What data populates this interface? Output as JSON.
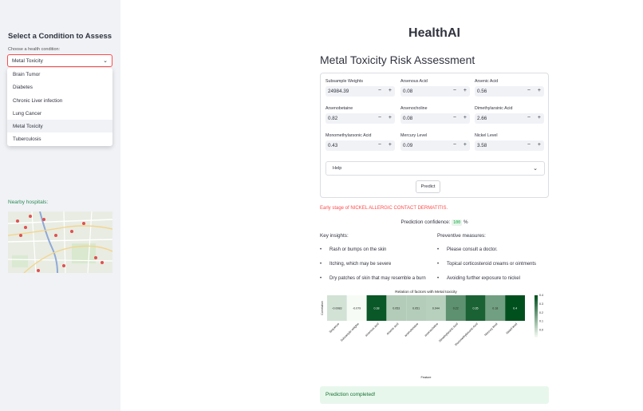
{
  "sidebar": {
    "title": "Select a Condition to Assess",
    "select_label": "Choose a health condition:",
    "selected": "Metal Toxicity",
    "options": [
      "Brain Tumor",
      "Diabetes",
      "Chronic Liver infection",
      "Lung Cancer",
      "Metal Toxicity",
      "Tuberculosis"
    ],
    "nearby_label": "Nearby hospitals:"
  },
  "main": {
    "app_title": "HealthAI",
    "subheader": "Metal Toxicity Risk Assessment",
    "fields": [
      {
        "label": "Subsample Weights",
        "value": "24984.39"
      },
      {
        "label": "Arsenous Acid",
        "value": "0.08"
      },
      {
        "label": "Arsenic Acid",
        "value": "0.56"
      },
      {
        "label": "Arsenobetaine",
        "value": "0.82"
      },
      {
        "label": "Arsenocholine",
        "value": "0.08"
      },
      {
        "label": "Dimethylarsinic Acid",
        "value": "2.66"
      },
      {
        "label": "Monomethylarsonic Acid",
        "value": "0.43"
      },
      {
        "label": "Mercury Level",
        "value": "0.09"
      },
      {
        "label": "Nickel Level",
        "value": "3.58"
      }
    ],
    "stepper_minus": "−",
    "stepper_plus": "+",
    "help_label": "Help",
    "predict_label": "Predict",
    "result_text": "Early stage of NICKEL ALLERGIC CONTACT DERMATITIS.",
    "confidence_label": "Prediction confidence:",
    "confidence_value": "100",
    "confidence_unit": "%",
    "insights_title": "Key insights:",
    "insights": [
      "Rash or bumps on the skin",
      "Itching, which may be severe",
      "Dry patches of skin that may resemble a burn"
    ],
    "preventive_title": "Preventive measures:",
    "preventive": [
      "Please consult a doctor.",
      "Topical corticosteroid creams or ointments",
      "Avoiding further exposure to nickel"
    ],
    "success_text": "Prediction completed!"
  },
  "chart_data": {
    "type": "heatmap",
    "title": "Relation of factors with Metal toxicity",
    "xlabel": "Feature",
    "ylabel": "Correlation",
    "categories": [
      "Sequence",
      "Subsample weights",
      "arsenous acid",
      "Arsenic acid",
      "arsenobetaine",
      "arsenocholine",
      "Dimethylarsinic Acid",
      "Monomethylarsonic Acid",
      "Mercury level",
      "Nickel level"
    ],
    "values": [
      -0.0083,
      -0.079,
      0.38,
      0.053,
      0.051,
      0.044,
      0.22,
      0.35,
      0.18,
      0.4
    ],
    "value_labels": [
      "-0.0083",
      "-0.079",
      "0.38",
      "0.053",
      "0.051",
      "0.044",
      "0.22",
      "0.35",
      "0.18",
      "0.4"
    ],
    "colorbar_ticks": [
      "0.4",
      "0.3",
      "0.2",
      "0.1",
      "0.0"
    ],
    "vmin": -0.08,
    "vmax": 0.4
  }
}
